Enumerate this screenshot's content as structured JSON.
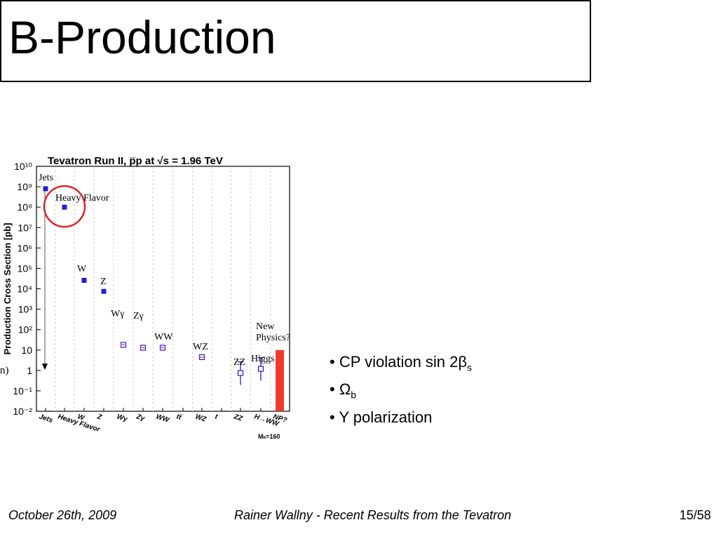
{
  "slide": {
    "title": "B-Production"
  },
  "chart_data": {
    "type": "scatter",
    "title": "Tevatron Run II, p̅p at √s = 1.96 TeV",
    "ylabel": "Production Cross Section [pb]",
    "yscale": "log",
    "ylim": [
      0.01,
      10000000000
    ],
    "y_ticks": [
      "10⁻²",
      "10⁻¹",
      "1",
      "10",
      "10²",
      "10³",
      "10⁴",
      "10⁵",
      "10⁶",
      "10⁷",
      "10⁸",
      "10⁹",
      "10¹⁰"
    ],
    "categories": [
      "Jets",
      "Heavy Flavor",
      "W",
      "Z",
      "Wγ",
      "Zγ",
      "WW",
      "tt̅",
      "WZ",
      "t",
      "ZZ",
      "H→WW",
      "NP?"
    ],
    "footnote": "Mₕ=160",
    "series": [
      {
        "marker": "filled-square",
        "points": [
          {
            "label": "Jets",
            "y": 800000000
          },
          {
            "label": "Heavy Flavor",
            "y": 100000000
          },
          {
            "label": "W",
            "y": 26000
          },
          {
            "label": "Z",
            "y": 7500
          }
        ]
      },
      {
        "marker": "open-square",
        "points": [
          {
            "label": "Wγ",
            "y": 18
          },
          {
            "label": "Zγ",
            "y": 13
          },
          {
            "label": "WW",
            "y": 13
          },
          {
            "label": "WZ",
            "y": 4.5
          },
          {
            "label": "ZZ",
            "y": 0.75
          },
          {
            "label": "Higgs",
            "y": 1.2
          }
        ]
      }
    ],
    "new_physics_bar": {
      "from": 0.01,
      "to": 10,
      "color": "#ef3b2c"
    },
    "point_labels": [
      "Jets",
      "Heavy Flavor",
      "W",
      "Z",
      "Wγ",
      "Zγ",
      "WW",
      "WZ",
      "ZZ",
      "Higgs",
      "New",
      "Physics?"
    ],
    "left_edge_label": "n)",
    "highlight_circle": {
      "target": "Heavy Flavor",
      "color": "#d9262c"
    }
  },
  "bullets": [
    {
      "text": "• CP violation sin 2β",
      "sub": "s"
    },
    {
      "text": "• Ω",
      "sub": "b"
    },
    {
      "text": "• Υ polarization",
      "sub": ""
    }
  ],
  "footer": {
    "date": "October 26th, 2009",
    "center": "Rainer Wallny - Recent Results from the Tevatron",
    "page": "15/58"
  }
}
